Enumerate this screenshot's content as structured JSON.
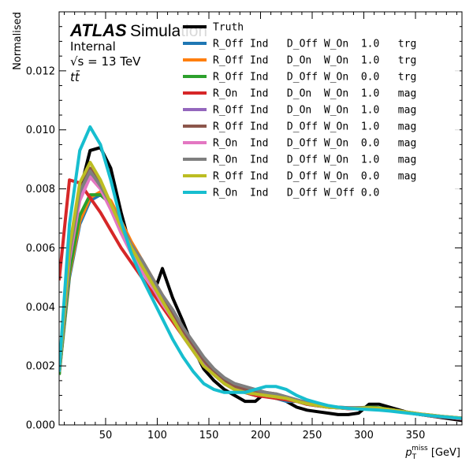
{
  "header": {
    "experiment": "ATLAS",
    "label": "Simulation",
    "status": "Internal",
    "energy": "√s = 13 TeV",
    "process": "tt̄"
  },
  "chart_data": {
    "type": "line",
    "xlabel": "p_T^miss [GeV]",
    "ylabel": "Normalised",
    "xlim": [
      5,
      395
    ],
    "ylim": [
      0,
      0.014
    ],
    "xticks": [
      50,
      100,
      150,
      200,
      250,
      300,
      350
    ],
    "yticks": [
      0.0,
      0.002,
      0.004,
      0.006,
      0.008,
      0.01,
      0.012
    ],
    "xtick_labels": [
      "50",
      "100",
      "150",
      "200",
      "250",
      "300",
      "350"
    ],
    "ytick_labels": [
      "0.000",
      "0.002",
      "0.004",
      "0.006",
      "0.008",
      "0.010",
      "0.012"
    ],
    "grid": false,
    "legend_position": "top-right",
    "series": [
      {
        "name": "Truth",
        "color": "#000000",
        "x": [
          5,
          15,
          25,
          35,
          45,
          55,
          65,
          75,
          85,
          95,
          100,
          105,
          115,
          125,
          135,
          145,
          155,
          165,
          175,
          185,
          195,
          205,
          215,
          225,
          235,
          245,
          255,
          265,
          275,
          285,
          295,
          305,
          315,
          325,
          335,
          345,
          355,
          365,
          375,
          385,
          395
        ],
        "y": [
          0.0017,
          0.0055,
          0.0079,
          0.0093,
          0.0094,
          0.0087,
          0.0072,
          0.0059,
          0.0054,
          0.0049,
          0.0048,
          0.0053,
          0.0043,
          0.0035,
          0.0026,
          0.0019,
          0.0015,
          0.0012,
          0.001,
          0.0008,
          0.0008,
          0.0011,
          0.001,
          0.0008,
          0.0006,
          0.0005,
          0.00045,
          0.0004,
          0.00035,
          0.00035,
          0.0004,
          0.0007,
          0.0007,
          0.0006,
          0.0005,
          0.0004,
          0.00035,
          0.0003,
          0.00025,
          0.0002,
          0.00015
        ]
      },
      {
        "name": "R_Off Ind   D_Off W_On  1.0   trg",
        "color": "#1f77b4",
        "x": [
          5,
          15,
          25,
          35,
          45,
          55,
          65,
          75,
          85,
          95,
          105,
          115,
          125,
          135,
          145,
          155,
          165,
          175,
          185,
          195,
          205,
          215,
          225,
          235,
          245,
          255,
          265,
          275,
          285,
          295,
          305,
          315,
          325,
          335,
          345,
          355,
          365,
          375,
          385,
          395
        ],
        "y": [
          0.0017,
          0.005,
          0.0068,
          0.0076,
          0.0078,
          0.0075,
          0.0068,
          0.0061,
          0.0055,
          0.0049,
          0.0043,
          0.0037,
          0.0031,
          0.0026,
          0.0021,
          0.0017,
          0.0014,
          0.0012,
          0.0011,
          0.001,
          0.001,
          0.0009,
          0.0008,
          0.0008,
          0.0007,
          0.00065,
          0.0006,
          0.00058,
          0.00055,
          0.00055,
          0.00055,
          0.00055,
          0.0005,
          0.00045,
          0.0004,
          0.00035,
          0.0003,
          0.00027,
          0.00024,
          0.0002
        ]
      },
      {
        "name": "R_Off Ind   D_On  W_On  1.0   trg",
        "color": "#ff7f0e",
        "x": [
          5,
          15,
          25,
          35,
          45,
          55,
          65,
          75,
          85,
          95,
          105,
          115,
          125,
          135,
          145,
          155,
          165,
          175,
          185,
          195,
          205,
          215,
          225,
          235,
          245,
          255,
          265,
          275,
          285,
          295,
          305,
          315,
          325,
          335,
          345,
          355,
          365,
          375,
          385,
          395
        ],
        "y": [
          0.0017,
          0.0051,
          0.0069,
          0.0077,
          0.0079,
          0.0076,
          0.0069,
          0.0062,
          0.0056,
          0.005,
          0.0044,
          0.0038,
          0.0032,
          0.0027,
          0.0022,
          0.0018,
          0.0015,
          0.0013,
          0.0012,
          0.0011,
          0.00105,
          0.00095,
          0.00085,
          0.0008,
          0.00072,
          0.00066,
          0.0006,
          0.00058,
          0.00056,
          0.00056,
          0.00056,
          0.00055,
          0.0005,
          0.00045,
          0.0004,
          0.00036,
          0.00032,
          0.00028,
          0.00025,
          0.00022
        ]
      },
      {
        "name": "R_Off Ind   D_Off W_On  0.0   trg",
        "color": "#2ca02c",
        "x": [
          5,
          15,
          25,
          35,
          45,
          55,
          65,
          75,
          85,
          95,
          105,
          115,
          125,
          135,
          145,
          155,
          165,
          175,
          185,
          195,
          205,
          215,
          225,
          235,
          245,
          255,
          265,
          275,
          285,
          295,
          305,
          315,
          325,
          335,
          345,
          355,
          365,
          375,
          385,
          395
        ],
        "y": [
          0.0017,
          0.0052,
          0.0071,
          0.0078,
          0.0078,
          0.0075,
          0.0067,
          0.006,
          0.0054,
          0.0048,
          0.0042,
          0.0036,
          0.003,
          0.0025,
          0.002,
          0.0017,
          0.0014,
          0.0012,
          0.0011,
          0.001,
          0.001,
          0.0009,
          0.00085,
          0.0008,
          0.0007,
          0.00065,
          0.0006,
          0.00058,
          0.00056,
          0.00058,
          0.0006,
          0.00058,
          0.00052,
          0.00046,
          0.0004,
          0.00036,
          0.00032,
          0.00028,
          0.00025,
          0.00022
        ]
      },
      {
        "name": "R_On  Ind   D_On  W_On  1.0   mag",
        "color": "#d62728",
        "x": [
          5,
          15,
          25,
          35,
          45,
          55,
          65,
          75,
          85,
          95,
          105,
          115,
          125,
          135,
          145,
          155,
          165,
          175,
          185,
          195,
          205,
          215,
          225,
          235,
          245,
          255,
          265,
          275,
          285,
          295,
          305,
          315,
          325,
          335,
          345,
          355,
          365,
          375,
          385,
          395
        ],
        "y": [
          0.0049,
          0.0083,
          0.0082,
          0.0077,
          0.0072,
          0.0066,
          0.006,
          0.0055,
          0.005,
          0.0045,
          0.004,
          0.0035,
          0.003,
          0.0025,
          0.002,
          0.0017,
          0.0014,
          0.0012,
          0.0011,
          0.001,
          0.00095,
          0.0009,
          0.00085,
          0.0008,
          0.0007,
          0.00065,
          0.0006,
          0.00058,
          0.00055,
          0.00055,
          0.00055,
          0.00055,
          0.0005,
          0.00045,
          0.0004,
          0.00035,
          0.0003,
          0.00027,
          0.00024,
          0.0002
        ]
      },
      {
        "name": "R_Off Ind   D_On  W_On  1.0   mag",
        "color": "#9467bd",
        "x": [
          5,
          15,
          25,
          35,
          45,
          55,
          65,
          75,
          85,
          95,
          105,
          115,
          125,
          135,
          145,
          155,
          165,
          175,
          185,
          195,
          205,
          215,
          225,
          235,
          245,
          255,
          265,
          275,
          285,
          295,
          305,
          315,
          325,
          335,
          345,
          355,
          365,
          375,
          385,
          395
        ],
        "y": [
          0.0018,
          0.0056,
          0.0077,
          0.0085,
          0.0081,
          0.0074,
          0.0066,
          0.0059,
          0.0053,
          0.0048,
          0.0042,
          0.0037,
          0.0031,
          0.0026,
          0.0021,
          0.0017,
          0.0015,
          0.0013,
          0.0012,
          0.0011,
          0.0011,
          0.001,
          0.0009,
          0.00082,
          0.00074,
          0.00067,
          0.0006,
          0.00058,
          0.00056,
          0.00056,
          0.00056,
          0.00055,
          0.0005,
          0.00045,
          0.0004,
          0.00036,
          0.00032,
          0.00028,
          0.00025,
          0.00022
        ]
      },
      {
        "name": "R_Off Ind   D_Off W_On  1.0   mag",
        "color": "#8c564b",
        "x": [
          5,
          15,
          25,
          35,
          45,
          55,
          65,
          75,
          85,
          95,
          105,
          115,
          125,
          135,
          145,
          155,
          165,
          175,
          185,
          195,
          205,
          215,
          225,
          235,
          245,
          255,
          265,
          275,
          285,
          295,
          305,
          315,
          325,
          335,
          345,
          355,
          365,
          375,
          385,
          395
        ],
        "y": [
          0.0018,
          0.0057,
          0.0079,
          0.0087,
          0.0082,
          0.0075,
          0.0067,
          0.006,
          0.0054,
          0.0049,
          0.0043,
          0.0038,
          0.0032,
          0.0027,
          0.0022,
          0.0018,
          0.0015,
          0.0013,
          0.0012,
          0.0011,
          0.0011,
          0.00105,
          0.00095,
          0.00085,
          0.00075,
          0.00068,
          0.00062,
          0.0006,
          0.00058,
          0.00058,
          0.00058,
          0.00056,
          0.00052,
          0.00047,
          0.00042,
          0.00037,
          0.00033,
          0.00029,
          0.00026,
          0.00023
        ]
      },
      {
        "name": "R_On  Ind   D_Off W_On  0.0   mag",
        "color": "#e377c2",
        "x": [
          5,
          15,
          25,
          35,
          45,
          55,
          65,
          75,
          85,
          95,
          105,
          115,
          125,
          135,
          145,
          155,
          165,
          175,
          185,
          195,
          205,
          215,
          225,
          235,
          245,
          255,
          265,
          275,
          285,
          295,
          305,
          315,
          325,
          335,
          345,
          355,
          365,
          375,
          385,
          395
        ],
        "y": [
          0.0018,
          0.0056,
          0.0076,
          0.0084,
          0.008,
          0.0073,
          0.0065,
          0.0058,
          0.0052,
          0.0047,
          0.0041,
          0.0036,
          0.003,
          0.0025,
          0.002,
          0.0017,
          0.0014,
          0.0012,
          0.0011,
          0.00105,
          0.001,
          0.00095,
          0.0009,
          0.0008,
          0.00072,
          0.00066,
          0.0006,
          0.00058,
          0.00056,
          0.00056,
          0.00056,
          0.00055,
          0.0005,
          0.00045,
          0.0004,
          0.00036,
          0.00032,
          0.00028,
          0.00025,
          0.00022
        ]
      },
      {
        "name": "R_On  Ind   D_Off W_On  1.0   mag",
        "color": "#7f7f7f",
        "x": [
          5,
          15,
          25,
          35,
          45,
          55,
          65,
          75,
          85,
          95,
          105,
          115,
          125,
          135,
          145,
          155,
          165,
          175,
          185,
          195,
          205,
          215,
          225,
          235,
          245,
          255,
          265,
          275,
          285,
          295,
          305,
          315,
          325,
          335,
          345,
          355,
          365,
          375,
          385,
          395
        ],
        "y": [
          0.0018,
          0.0058,
          0.0079,
          0.0086,
          0.0081,
          0.0075,
          0.0068,
          0.0061,
          0.0056,
          0.005,
          0.0044,
          0.0039,
          0.0033,
          0.0028,
          0.0023,
          0.0019,
          0.0016,
          0.0014,
          0.0013,
          0.0012,
          0.0011,
          0.00105,
          0.00095,
          0.00085,
          0.00076,
          0.00068,
          0.00062,
          0.0006,
          0.00058,
          0.00058,
          0.00058,
          0.00056,
          0.00052,
          0.00047,
          0.00042,
          0.00037,
          0.00033,
          0.00029,
          0.00026,
          0.00023
        ]
      },
      {
        "name": "R_Off Ind   D_Off W_On  0.0   mag",
        "color": "#bcbd22",
        "x": [
          5,
          15,
          25,
          35,
          45,
          55,
          65,
          75,
          85,
          95,
          105,
          115,
          125,
          135,
          145,
          155,
          165,
          175,
          185,
          195,
          205,
          215,
          225,
          235,
          245,
          255,
          265,
          275,
          285,
          295,
          305,
          315,
          325,
          335,
          345,
          355,
          365,
          375,
          385,
          395
        ],
        "y": [
          0.0018,
          0.006,
          0.0082,
          0.0089,
          0.0083,
          0.0075,
          0.0067,
          0.006,
          0.0054,
          0.0048,
          0.0042,
          0.0036,
          0.003,
          0.0025,
          0.002,
          0.0017,
          0.0014,
          0.0012,
          0.0011,
          0.00105,
          0.001,
          0.00095,
          0.0009,
          0.0008,
          0.00072,
          0.00066,
          0.0006,
          0.00058,
          0.00056,
          0.00056,
          0.00058,
          0.00056,
          0.00052,
          0.00047,
          0.00042,
          0.00037,
          0.00033,
          0.00029,
          0.00026,
          0.00023
        ]
      },
      {
        "name": "R_On  Ind   D_Off W_Off 0.0",
        "color": "#17becf",
        "x": [
          5,
          15,
          25,
          35,
          45,
          55,
          65,
          75,
          85,
          95,
          105,
          115,
          125,
          135,
          145,
          155,
          165,
          175,
          185,
          195,
          205,
          215,
          225,
          235,
          245,
          255,
          265,
          275,
          285,
          295,
          305,
          315,
          325,
          335,
          345,
          355,
          365,
          375,
          385,
          395
        ],
        "y": [
          0.0018,
          0.0068,
          0.0093,
          0.0101,
          0.0095,
          0.0083,
          0.0069,
          0.0058,
          0.005,
          0.0043,
          0.0036,
          0.0029,
          0.0023,
          0.0018,
          0.0014,
          0.0012,
          0.0011,
          0.0011,
          0.0011,
          0.0012,
          0.0013,
          0.0013,
          0.0012,
          0.001,
          0.00085,
          0.00075,
          0.00066,
          0.0006,
          0.00056,
          0.00054,
          0.00052,
          0.0005,
          0.00047,
          0.00043,
          0.00039,
          0.00035,
          0.00031,
          0.00028,
          0.00025,
          0.00022
        ]
      }
    ]
  }
}
